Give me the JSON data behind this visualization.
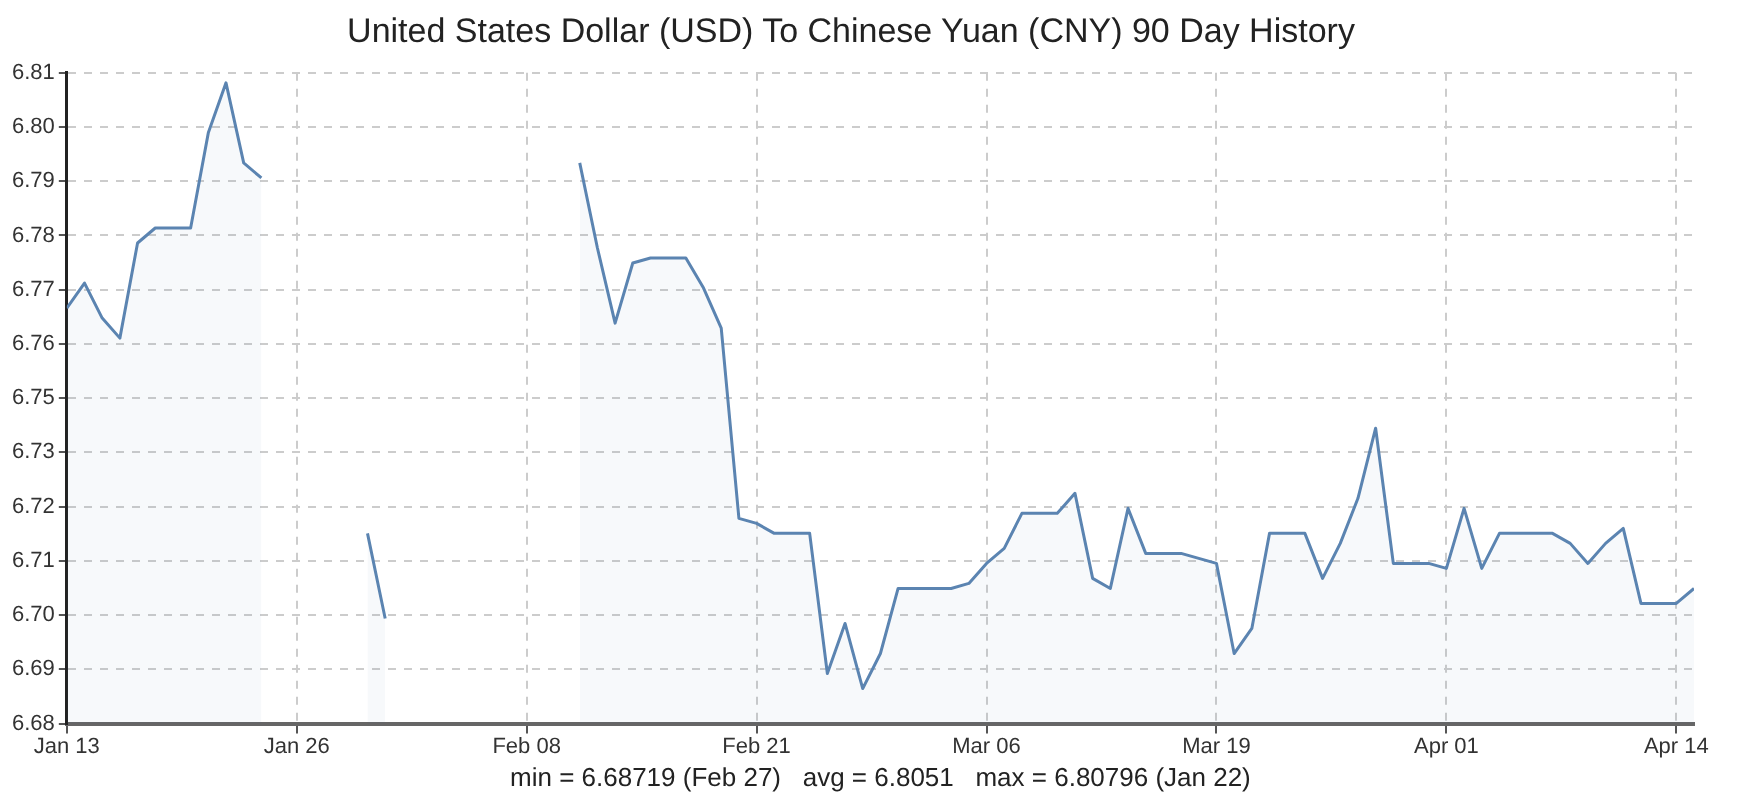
{
  "chart_data": {
    "type": "area",
    "title": "United States Dollar (USD) To Chinese Yuan (CNY) 90 Day History",
    "annotations": [
      "min = 6.68719 (Feb 27)   avg = 6.8051   max = 6.80796 (Jan 22)"
    ],
    "x": [
      "--01-13",
      "--01-14",
      "--01-15",
      "--01-16",
      "--01-17",
      "--01-18",
      "--01-19",
      "--01-20",
      "--01-21",
      "--01-22",
      "--01-23",
      "--01-24",
      "--01-25",
      "--01-30",
      "--01-31",
      "--02-01",
      "--02-11",
      "--02-12",
      "--02-13",
      "--02-14",
      "--02-15",
      "--02-17",
      "--02-18",
      "--02-19",
      "--02-20",
      "--02-21",
      "--02-22",
      "--02-24",
      "--02-25",
      "--02-26",
      "--02-27",
      "--02-28",
      "--03-01",
      "--03-03",
      "--03-04",
      "--03-05",
      "--03-06",
      "--03-07",
      "--03-08",
      "--03-10",
      "--03-11",
      "--03-12",
      "--03-13",
      "--03-14",
      "--03-15",
      "--03-17",
      "--03-18",
      "--03-19",
      "--03-20",
      "--03-21",
      "--03-22",
      "--03-24",
      "--03-25",
      "--03-26",
      "--03-27",
      "--03-28",
      "--03-29",
      "--03-31",
      "--04-01",
      "--04-02",
      "--04-03",
      "--04-04",
      "--04-07",
      "--04-08",
      "--04-09",
      "--04-10",
      "--04-11",
      "--04-12",
      "--04-14",
      "--04-15"
    ],
    "series": [
      {
        "color": "#5b84b1",
        "values": [
          6.763,
          6.768,
          6.761,
          6.757,
          6.776,
          6.779,
          6.779,
          6.779,
          6.798,
          6.808,
          6.792,
          6.789,
          null,
          6.718,
          6.701,
          null,
          6.792,
          6.775,
          6.76,
          6.772,
          6.773,
          6.773,
          6.767,
          6.759,
          6.721,
          6.72,
          6.718,
          6.718,
          6.69,
          6.7,
          6.687,
          6.694,
          6.707,
          6.707,
          6.707,
          6.708,
          6.712,
          6.715,
          6.722,
          6.722,
          6.726,
          6.709,
          6.707,
          6.723,
          6.714,
          6.714,
          6.713,
          6.712,
          6.694,
          6.699,
          6.718,
          6.718,
          6.709,
          6.716,
          6.725,
          6.739,
          6.712,
          6.712,
          6.711,
          6.723,
          6.711,
          6.718,
          6.718,
          6.716,
          6.712,
          6.716,
          6.719,
          6.704,
          6.704,
          6.707
        ]
      }
    ],
    "xlim": [
      "--01-13",
      "--04-15"
    ],
    "xticks": [
      {
        "value": "--01-13",
        "label": "Jan 13"
      },
      {
        "value": "--01-26",
        "label": "Jan 26"
      },
      {
        "value": "--02-08",
        "label": "Feb 08"
      },
      {
        "value": "--02-21",
        "label": "Feb 21"
      },
      {
        "value": "--03-06",
        "label": "Mar 06"
      },
      {
        "value": "--03-19",
        "label": "Mar 19"
      },
      {
        "value": "--04-01",
        "label": "Apr 01"
      },
      {
        "value": "--04-14",
        "label": "Apr 14"
      }
    ],
    "ylim": [
      6.68,
      6.81
    ],
    "yticks": [
      {
        "value": 6.68,
        "label": "6.68"
      },
      {
        "value": 6.69083,
        "label": "6.69"
      },
      {
        "value": 6.70167,
        "label": "6.70"
      },
      {
        "value": 6.7125,
        "label": "6.71"
      },
      {
        "value": 6.72333,
        "label": "6.72"
      },
      {
        "value": 6.73417,
        "label": "6.73"
      },
      {
        "value": 6.745,
        "label": "6.75"
      },
      {
        "value": 6.75583,
        "label": "6.76"
      },
      {
        "value": 6.76667,
        "label": "6.77"
      },
      {
        "value": 6.7775,
        "label": "6.78"
      },
      {
        "value": 6.78833,
        "label": "6.79"
      },
      {
        "value": 6.79917,
        "label": "6.80"
      },
      {
        "value": 6.81,
        "label": "6.81"
      }
    ],
    "grid": true,
    "marker": "none",
    "line_style": "solid",
    "legend": false
  }
}
